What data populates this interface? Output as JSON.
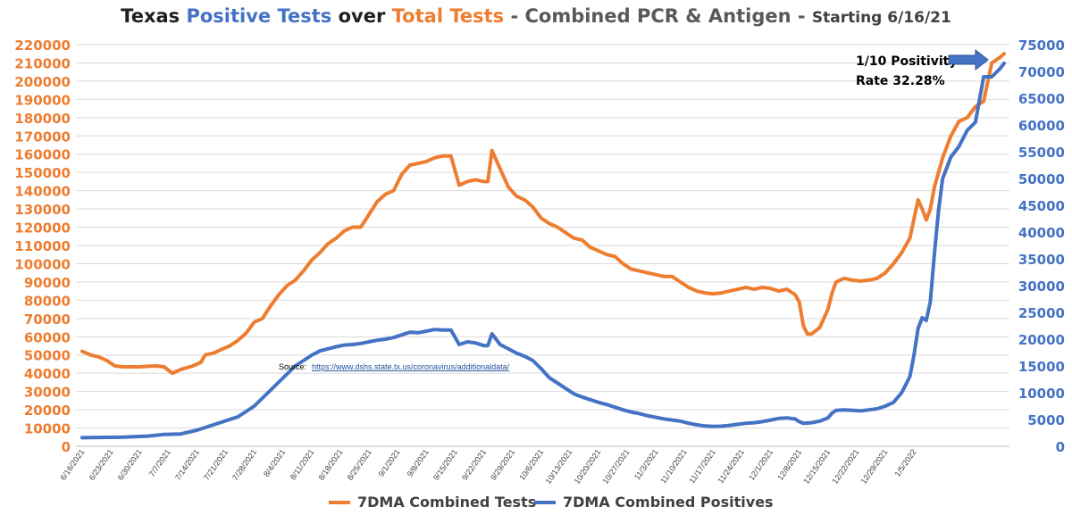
{
  "title": {
    "part1": "Texas ",
    "part2": "Positive Tests",
    "part3": " over ",
    "part4": "Total Tests",
    "part5": " - Combined PCR & Antigen - ",
    "part6": "Starting 6/16/21"
  },
  "colors": {
    "orange": "#ED7D31",
    "blue": "#4472C4",
    "text_dark": "#1F1F1F",
    "source_link": "#1F4E99"
  },
  "annotation": {
    "line1": "1/10 Positivity",
    "line2": "Rate 32.28%"
  },
  "source": {
    "label": "Source:",
    "url": "https://www.dshs.state.tx.us/coronavirus/additionaldata/"
  },
  "chart_data": {
    "type": "line",
    "x_tick_labels": [
      "6/16/2021",
      "6/23/2021",
      "6/30/2021",
      "7/7/2021",
      "7/14/2021",
      "7/21/2021",
      "7/28/2021",
      "8/4/2021",
      "8/11/2021",
      "8/18/2021",
      "8/25/2021",
      "9/1/2021",
      "9/8/2021",
      "9/15/2021",
      "9/22/2021",
      "9/29/2021",
      "10/6/2021",
      "10/13/2021",
      "10/20/2021",
      "10/27/2021",
      "11/3/2021",
      "11/10/2021",
      "11/17/2021",
      "11/24/2021",
      "12/1/2021",
      "12/8/2021",
      "12/15/2021",
      "12/22/2021",
      "12/29/2021",
      "1/5/2022"
    ],
    "x_day_range": [
      0,
      208
    ],
    "left_axis": {
      "min": 0,
      "max": 220000,
      "step": 10000,
      "color": "#ED7D31"
    },
    "right_axis": {
      "min": 0,
      "max": 75000,
      "step": 5000,
      "color": "#4472C4"
    },
    "grid": true,
    "legend_position": "bottom",
    "series": [
      {
        "name": "7DMA Combined Tests",
        "axis": "left",
        "color": "#ED7D31",
        "points": [
          [
            0,
            52000
          ],
          [
            2,
            50000
          ],
          [
            4,
            49000
          ],
          [
            6,
            47000
          ],
          [
            8,
            44000
          ],
          [
            10,
            43500
          ],
          [
            14,
            43500
          ],
          [
            16,
            43800
          ],
          [
            18,
            44000
          ],
          [
            20,
            43500
          ],
          [
            22,
            40000
          ],
          [
            24,
            42000
          ],
          [
            27,
            44000
          ],
          [
            29,
            46000
          ],
          [
            30,
            50000
          ],
          [
            32,
            51000
          ],
          [
            34,
            53000
          ],
          [
            36,
            55000
          ],
          [
            38,
            58000
          ],
          [
            40,
            62000
          ],
          [
            42,
            68000
          ],
          [
            44,
            70000
          ],
          [
            46,
            77000
          ],
          [
            48,
            83000
          ],
          [
            50,
            88000
          ],
          [
            52,
            91000
          ],
          [
            54,
            96000
          ],
          [
            56,
            102000
          ],
          [
            58,
            106000
          ],
          [
            60,
            111000
          ],
          [
            62,
            114000
          ],
          [
            64,
            118000
          ],
          [
            66,
            120000
          ],
          [
            68,
            120000
          ],
          [
            70,
            127000
          ],
          [
            72,
            134000
          ],
          [
            74,
            138000
          ],
          [
            76,
            140000
          ],
          [
            78,
            149000
          ],
          [
            80,
            154000
          ],
          [
            82,
            155000
          ],
          [
            84,
            156000
          ],
          [
            86,
            158000
          ],
          [
            88,
            159000
          ],
          [
            90,
            159000
          ],
          [
            92,
            143000
          ],
          [
            94,
            145000
          ],
          [
            96,
            146000
          ],
          [
            98,
            145000
          ],
          [
            99,
            145000
          ],
          [
            100,
            162000
          ],
          [
            102,
            152000
          ],
          [
            104,
            142000
          ],
          [
            106,
            137000
          ],
          [
            108,
            135000
          ],
          [
            110,
            131000
          ],
          [
            112,
            125000
          ],
          [
            114,
            122000
          ],
          [
            116,
            120000
          ],
          [
            118,
            117000
          ],
          [
            120,
            114000
          ],
          [
            122,
            113000
          ],
          [
            124,
            109000
          ],
          [
            126,
            107000
          ],
          [
            128,
            105000
          ],
          [
            130,
            104000
          ],
          [
            132,
            100000
          ],
          [
            134,
            97000
          ],
          [
            136,
            96000
          ],
          [
            138,
            95000
          ],
          [
            140,
            94000
          ],
          [
            142,
            93000
          ],
          [
            144,
            93000
          ],
          [
            146,
            90000
          ],
          [
            148,
            87000
          ],
          [
            150,
            85000
          ],
          [
            152,
            84000
          ],
          [
            154,
            83500
          ],
          [
            156,
            84000
          ],
          [
            158,
            85000
          ],
          [
            160,
            86000
          ],
          [
            162,
            87000
          ],
          [
            164,
            86000
          ],
          [
            166,
            87000
          ],
          [
            168,
            86500
          ],
          [
            170,
            85000
          ],
          [
            172,
            86000
          ],
          [
            174,
            83000
          ],
          [
            175,
            79000
          ],
          [
            176,
            66000
          ],
          [
            177,
            61500
          ],
          [
            178,
            61500
          ],
          [
            180,
            65000
          ],
          [
            182,
            75000
          ],
          [
            183,
            84000
          ],
          [
            184,
            90000
          ],
          [
            186,
            92000
          ],
          [
            188,
            91000
          ],
          [
            190,
            90500
          ],
          [
            192,
            91000
          ],
          [
            194,
            92000
          ],
          [
            196,
            95000
          ],
          [
            198,
            100000
          ],
          [
            200,
            106000
          ],
          [
            202,
            114000
          ],
          [
            204,
            135000
          ],
          [
            205,
            130000
          ],
          [
            206,
            124000
          ],
          [
            207,
            130000
          ],
          [
            208,
            142000
          ],
          [
            210,
            158000
          ],
          [
            212,
            170000
          ],
          [
            214,
            178000
          ],
          [
            216,
            180000
          ],
          [
            218,
            186000
          ],
          [
            220,
            189000
          ],
          [
            222,
            210000
          ],
          [
            224,
            213000
          ],
          [
            225,
            215000
          ]
        ]
      },
      {
        "name": "7DMA Combined Positives",
        "axis": "right",
        "color": "#4472C4",
        "points": [
          [
            0,
            1600
          ],
          [
            10,
            1700
          ],
          [
            16,
            1900
          ],
          [
            20,
            2200
          ],
          [
            24,
            2300
          ],
          [
            28,
            3000
          ],
          [
            30,
            3500
          ],
          [
            34,
            4500
          ],
          [
            38,
            5500
          ],
          [
            40,
            6500
          ],
          [
            42,
            7500
          ],
          [
            44,
            9000
          ],
          [
            46,
            10500
          ],
          [
            48,
            12000
          ],
          [
            50,
            13500
          ],
          [
            52,
            15000
          ],
          [
            54,
            16000
          ],
          [
            56,
            17000
          ],
          [
            58,
            17800
          ],
          [
            60,
            18200
          ],
          [
            62,
            18600
          ],
          [
            64,
            18900
          ],
          [
            66,
            19000
          ],
          [
            68,
            19200
          ],
          [
            70,
            19500
          ],
          [
            72,
            19800
          ],
          [
            74,
            20000
          ],
          [
            76,
            20300
          ],
          [
            78,
            20800
          ],
          [
            80,
            21300
          ],
          [
            82,
            21200
          ],
          [
            84,
            21500
          ],
          [
            86,
            21800
          ],
          [
            88,
            21700
          ],
          [
            90,
            21700
          ],
          [
            92,
            19000
          ],
          [
            94,
            19500
          ],
          [
            96,
            19300
          ],
          [
            98,
            18800
          ],
          [
            99,
            18800
          ],
          [
            100,
            21000
          ],
          [
            102,
            19000
          ],
          [
            104,
            18200
          ],
          [
            106,
            17400
          ],
          [
            108,
            16800
          ],
          [
            110,
            16000
          ],
          [
            112,
            14500
          ],
          [
            114,
            12800
          ],
          [
            116,
            11800
          ],
          [
            118,
            10800
          ],
          [
            120,
            9800
          ],
          [
            122,
            9200
          ],
          [
            124,
            8700
          ],
          [
            126,
            8200
          ],
          [
            128,
            7800
          ],
          [
            130,
            7300
          ],
          [
            132,
            6800
          ],
          [
            134,
            6400
          ],
          [
            136,
            6100
          ],
          [
            138,
            5700
          ],
          [
            140,
            5400
          ],
          [
            142,
            5100
          ],
          [
            144,
            4900
          ],
          [
            146,
            4700
          ],
          [
            148,
            4300
          ],
          [
            150,
            4000
          ],
          [
            152,
            3800
          ],
          [
            154,
            3700
          ],
          [
            156,
            3750
          ],
          [
            158,
            3900
          ],
          [
            160,
            4100
          ],
          [
            162,
            4300
          ],
          [
            164,
            4400
          ],
          [
            166,
            4600
          ],
          [
            168,
            4900
          ],
          [
            170,
            5200
          ],
          [
            172,
            5300
          ],
          [
            174,
            5100
          ],
          [
            175,
            4600
          ],
          [
            176,
            4300
          ],
          [
            178,
            4400
          ],
          [
            180,
            4700
          ],
          [
            182,
            5300
          ],
          [
            183,
            6200
          ],
          [
            184,
            6700
          ],
          [
            186,
            6800
          ],
          [
            188,
            6700
          ],
          [
            190,
            6600
          ],
          [
            192,
            6800
          ],
          [
            194,
            7000
          ],
          [
            196,
            7500
          ],
          [
            198,
            8200
          ],
          [
            200,
            10000
          ],
          [
            202,
            13000
          ],
          [
            203,
            17000
          ],
          [
            204,
            22000
          ],
          [
            205,
            24000
          ],
          [
            206,
            23500
          ],
          [
            207,
            27000
          ],
          [
            208,
            36000
          ],
          [
            209,
            44000
          ],
          [
            210,
            50000
          ],
          [
            212,
            54000
          ],
          [
            214,
            56000
          ],
          [
            216,
            59000
          ],
          [
            218,
            60500
          ],
          [
            220,
            69000
          ],
          [
            222,
            69000
          ],
          [
            224,
            70500
          ],
          [
            225,
            71500
          ]
        ]
      }
    ]
  },
  "legend": [
    {
      "label": "7DMA Combined Tests",
      "color": "#ED7D31"
    },
    {
      "label": "7DMA Combined Positives",
      "color": "#4472C4"
    }
  ]
}
